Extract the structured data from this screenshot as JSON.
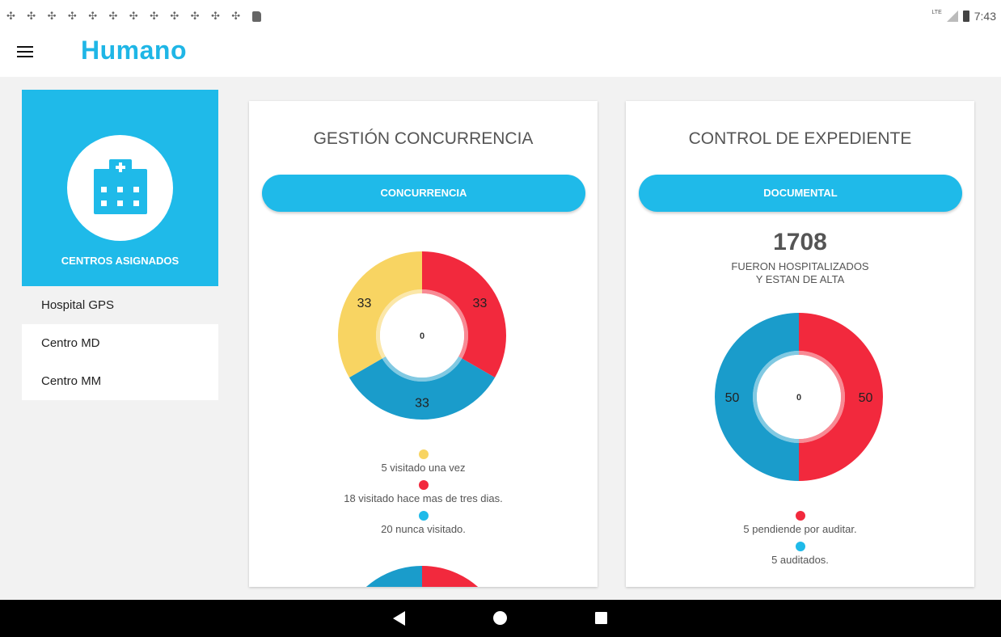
{
  "status_bar": {
    "time": "7:43",
    "network": "LTE",
    "notification_count": 12
  },
  "app_bar": {
    "logo": "Humano",
    "menu_icon": "hamburger-icon"
  },
  "sidebar": {
    "header_label": "CENTROS ASIGNADOS",
    "header_icon": "hospital-icon",
    "items": [
      {
        "label": "Hospital GPS"
      },
      {
        "label": "Centro MD"
      },
      {
        "label": "Centro MM"
      }
    ]
  },
  "cards": [
    {
      "title": "GESTIÓN CONCURRENCIA",
      "button": "CONCURRENCIA",
      "legend": [
        {
          "label": "5 visitado una vez",
          "color": "#f8d462"
        },
        {
          "label": "18 visitado hace mas de tres dias.",
          "color": "#f2293d"
        },
        {
          "label": "20 nunca visitado.",
          "color": "#1fbae9"
        }
      ]
    },
    {
      "title": "CONTROL DE EXPEDIENTE",
      "button": "DOCUMENTAL",
      "count": "1708",
      "subtitle_1": "FUERON HOSPITALIZADOS",
      "subtitle_2": "Y ESTAN DE ALTA",
      "legend": [
        {
          "label": "5 pendiende por auditar.",
          "color": "#f2293d"
        },
        {
          "label": "5 auditados.",
          "color": "#1fbae9"
        }
      ]
    }
  ],
  "chart_data": [
    {
      "type": "pie",
      "variant": "donut",
      "center_label": "0",
      "slices": [
        {
          "value": 33,
          "label": "33",
          "color": "#f2293d"
        },
        {
          "value": 33,
          "label": "33",
          "color": "#1a9ccb"
        },
        {
          "value": 33,
          "label": "33",
          "color": "#f8d462"
        }
      ]
    },
    {
      "type": "pie",
      "variant": "donut",
      "center_label": "0",
      "slices": [
        {
          "value": 50,
          "label": "50",
          "color": "#f2293d"
        },
        {
          "value": 50,
          "label": "50",
          "color": "#1a9ccb"
        }
      ]
    }
  ]
}
